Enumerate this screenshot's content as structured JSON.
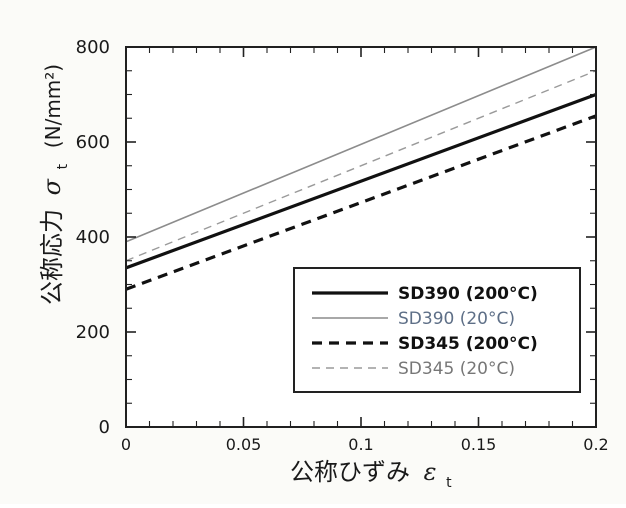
{
  "chart_data": {
    "type": "line",
    "x_axis": {
      "label": "公称ひずみ",
      "symbol": "ε",
      "subscript": "t",
      "range": [
        0,
        0.2
      ],
      "tick_values": [
        0,
        0.05,
        0.1,
        0.15,
        0.2
      ],
      "tick_labels": [
        "0",
        "0.05",
        "0.1",
        "0.15",
        "0.2"
      ]
    },
    "y_axis": {
      "label": "公称応力",
      "symbol": "σ",
      "subscript": "t",
      "unit_text": "(N/mm²)",
      "range": [
        0,
        800
      ],
      "tick_values": [
        0,
        200,
        400,
        600,
        800
      ],
      "tick_labels": [
        "0",
        "200",
        "400",
        "600",
        "800"
      ]
    },
    "legend_position": "lower-right",
    "grid": false,
    "series": [
      {
        "name": "SD390 (200°C)",
        "color": "#111111",
        "style": "solid-thick",
        "x": [
          0,
          0.2
        ],
        "y": [
          335,
          700
        ]
      },
      {
        "name": "SD390 (20°C)",
        "color": "#8c8c8c",
        "style": "solid-thin",
        "x": [
          0,
          0.2
        ],
        "y": [
          390,
          800
        ]
      },
      {
        "name": "SD345 (200°C)",
        "color": "#111111",
        "style": "dashed-thick",
        "x": [
          0,
          0.2
        ],
        "y": [
          290,
          655
        ]
      },
      {
        "name": "SD345 (20°C)",
        "color": "#9a9a9a",
        "style": "dashed-thin",
        "x": [
          0,
          0.2
        ],
        "y": [
          350,
          750
        ]
      }
    ]
  }
}
